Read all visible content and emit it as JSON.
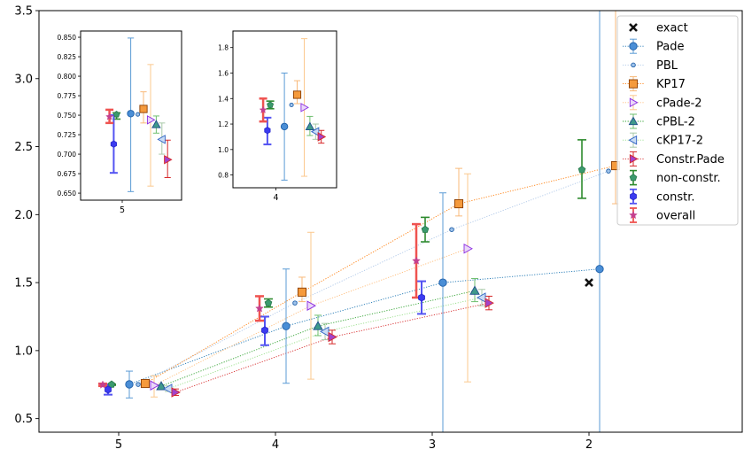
{
  "chart_data": {
    "type": "scatter",
    "title": "",
    "xlabel": "",
    "ylabel": "",
    "x_ticks": [
      "5",
      "4",
      "3",
      "2"
    ],
    "y_ticks": [
      "0.5",
      "1.0",
      "1.5",
      "2.0",
      "2.5",
      "3.0",
      "3.5"
    ],
    "ylim": [
      0.4,
      3.5
    ],
    "x_reversed": true,
    "exact": {
      "name": "exact",
      "x": 2,
      "y": 1.5,
      "color": "#000000"
    },
    "series": [
      {
        "name": "Pade",
        "marker": "circle",
        "color": "#1f77b4",
        "line": true,
        "points": [
          {
            "x": 5,
            "y": 0.752,
            "lo": 0.652,
            "hi": 0.849
          },
          {
            "x": 4,
            "y": 1.18,
            "lo": 0.76,
            "hi": 1.6
          },
          {
            "x": 3,
            "y": 1.5,
            "lo": 0.4,
            "hi": 2.16
          },
          {
            "x": 2,
            "y": 1.6,
            "lo": 0.4,
            "hi": 3.5
          }
        ]
      },
      {
        "name": "PBL",
        "marker": "small-circle",
        "color": "#1f77b4",
        "line": true,
        "points": [
          {
            "x": 5,
            "y": 0.751
          },
          {
            "x": 4,
            "y": 1.35
          },
          {
            "x": 3,
            "y": 1.89
          },
          {
            "x": 2,
            "y": 2.32
          }
        ]
      },
      {
        "name": "KP17",
        "marker": "square",
        "color": "#ff7f0e",
        "line": true,
        "points": [
          {
            "x": 5,
            "y": 0.758,
            "lo": 0.74,
            "hi": 0.78
          },
          {
            "x": 4,
            "y": 1.43,
            "lo": 1.36,
            "hi": 1.54
          },
          {
            "x": 3,
            "y": 2.08,
            "lo": 1.99,
            "hi": 2.34
          },
          {
            "x": 2,
            "y": 2.36,
            "lo": 2.08,
            "hi": 3.5
          }
        ]
      },
      {
        "name": "cPade-2",
        "marker": "triangle-right",
        "color": "#ff7f0e",
        "line": true,
        "points": [
          {
            "x": 5,
            "y": 0.744,
            "lo": 0.659,
            "hi": 0.815
          },
          {
            "x": 4,
            "y": 1.33,
            "lo": 0.79,
            "hi": 1.87
          },
          {
            "x": 3,
            "y": 1.75,
            "lo": 0.77,
            "hi": 2.3
          }
        ]
      },
      {
        "name": "cPBL-2",
        "marker": "triangle-up",
        "color": "#2ca02c",
        "line": true,
        "points": [
          {
            "x": 5,
            "y": 0.738,
            "lo": 0.727,
            "hi": 0.749
          },
          {
            "x": 4,
            "y": 1.18,
            "lo": 1.11,
            "hi": 1.26
          },
          {
            "x": 3,
            "y": 1.44,
            "lo": 1.36,
            "hi": 1.53
          }
        ]
      },
      {
        "name": "cKP17-2",
        "marker": "triangle-left",
        "color": "#1f77b4",
        "line": true,
        "points": [
          {
            "x": 5,
            "y": 0.719,
            "lo": 0.7,
            "hi": 0.74
          },
          {
            "x": 4,
            "y": 1.14,
            "lo": 1.08,
            "hi": 1.2
          },
          {
            "x": 3,
            "y": 1.39,
            "lo": 1.33,
            "hi": 1.45
          }
        ]
      },
      {
        "name": "Constr.Pade",
        "marker": "triangle-right",
        "color": "#d62728",
        "line": true,
        "points": [
          {
            "x": 5,
            "y": 0.693,
            "lo": 0.67,
            "hi": 0.718
          },
          {
            "x": 4,
            "y": 1.1,
            "lo": 1.05,
            "hi": 1.15
          },
          {
            "x": 3,
            "y": 1.35,
            "lo": 1.3,
            "hi": 1.4
          }
        ]
      },
      {
        "name": "non-constr.",
        "marker": "pentagon",
        "color": "#2ca02c",
        "line": false,
        "points": [
          {
            "x": 5,
            "y": 0.751,
            "lo": 0.745,
            "hi": 0.753
          },
          {
            "x": 4,
            "y": 1.35,
            "lo": 1.32,
            "hi": 1.38
          },
          {
            "x": 3,
            "y": 1.89,
            "lo": 1.8,
            "hi": 1.98
          },
          {
            "x": 2,
            "y": 2.33,
            "lo": 2.12,
            "hi": 2.55
          }
        ]
      },
      {
        "name": "constr.",
        "marker": "hexagon",
        "color": "#3b3bf0",
        "line": false,
        "points": [
          {
            "x": 5,
            "y": 0.713,
            "lo": 0.676,
            "hi": 0.75
          },
          {
            "x": 4,
            "y": 1.15,
            "lo": 1.04,
            "hi": 1.25
          },
          {
            "x": 3,
            "y": 1.39,
            "lo": 1.27,
            "hi": 1.51
          }
        ]
      },
      {
        "name": "overall",
        "marker": "star",
        "color": "#d62728",
        "line": false,
        "points": [
          {
            "x": 5,
            "y": 0.748,
            "lo": 0.74,
            "hi": 0.757
          },
          {
            "x": 4,
            "y": 1.31,
            "lo": 1.22,
            "hi": 1.4
          },
          {
            "x": 3,
            "y": 1.66,
            "lo": 1.39,
            "hi": 1.93
          }
        ]
      }
    ],
    "insets": [
      {
        "x_center": 5,
        "xtick": "5",
        "ylim": [
          0.641,
          0.858
        ],
        "yticks": [
          "0.650",
          "0.675",
          "0.700",
          "0.725",
          "0.750",
          "0.775",
          "0.800",
          "0.825",
          "0.850"
        ]
      },
      {
        "x_center": 4,
        "xtick": "4",
        "ylim": [
          0.7,
          1.93
        ],
        "yticks": [
          "0.8",
          "1.0",
          "1.2",
          "1.4",
          "1.6",
          "1.8"
        ]
      }
    ]
  }
}
